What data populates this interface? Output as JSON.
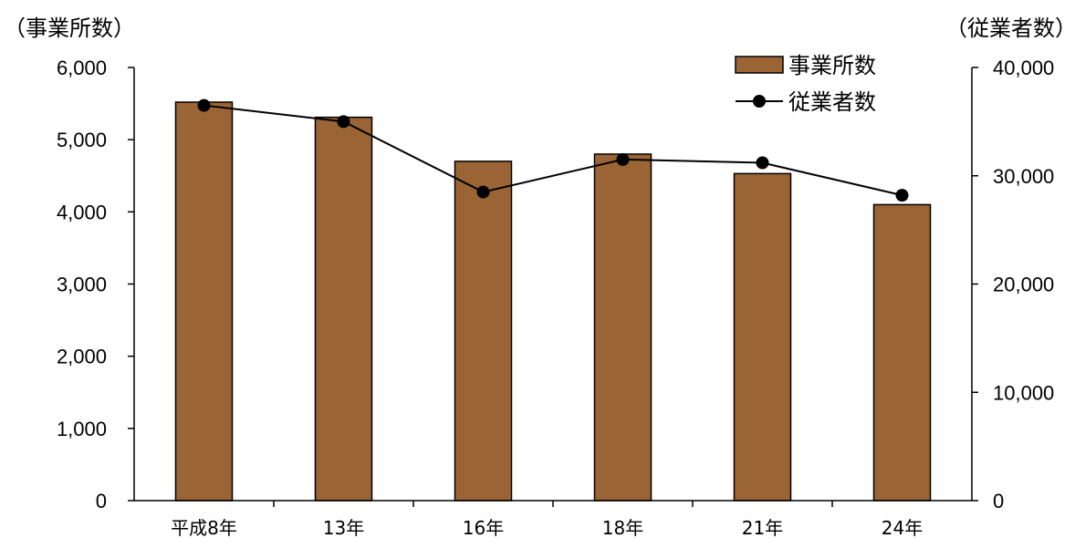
{
  "chart_data": {
    "type": "bar",
    "categories": [
      "平成8年",
      "13年",
      "16年",
      "18年",
      "21年",
      "24年"
    ],
    "series": [
      {
        "name": "事業所数",
        "type": "bar",
        "axis": "left",
        "values": [
          5520,
          5310,
          4700,
          4800,
          4530,
          4100
        ],
        "color": "#9a6435"
      },
      {
        "name": "従業者数",
        "type": "line",
        "axis": "right",
        "values": [
          36500,
          35000,
          28500,
          31500,
          31200,
          28200
        ],
        "color": "#000000"
      }
    ],
    "ylabel_left": "（事業所数）",
    "ylabel_right": "（従業者数）",
    "ylim_left": [
      0,
      6000
    ],
    "ylim_right": [
      0,
      40000
    ],
    "yticks_left": [
      "0",
      "1,000",
      "2,000",
      "3,000",
      "4,000",
      "5,000",
      "6,000"
    ],
    "yticks_right": [
      "0",
      "10,000",
      "20,000",
      "30,000",
      "40,000"
    ],
    "legend_position": "top-right",
    "grid": false
  }
}
